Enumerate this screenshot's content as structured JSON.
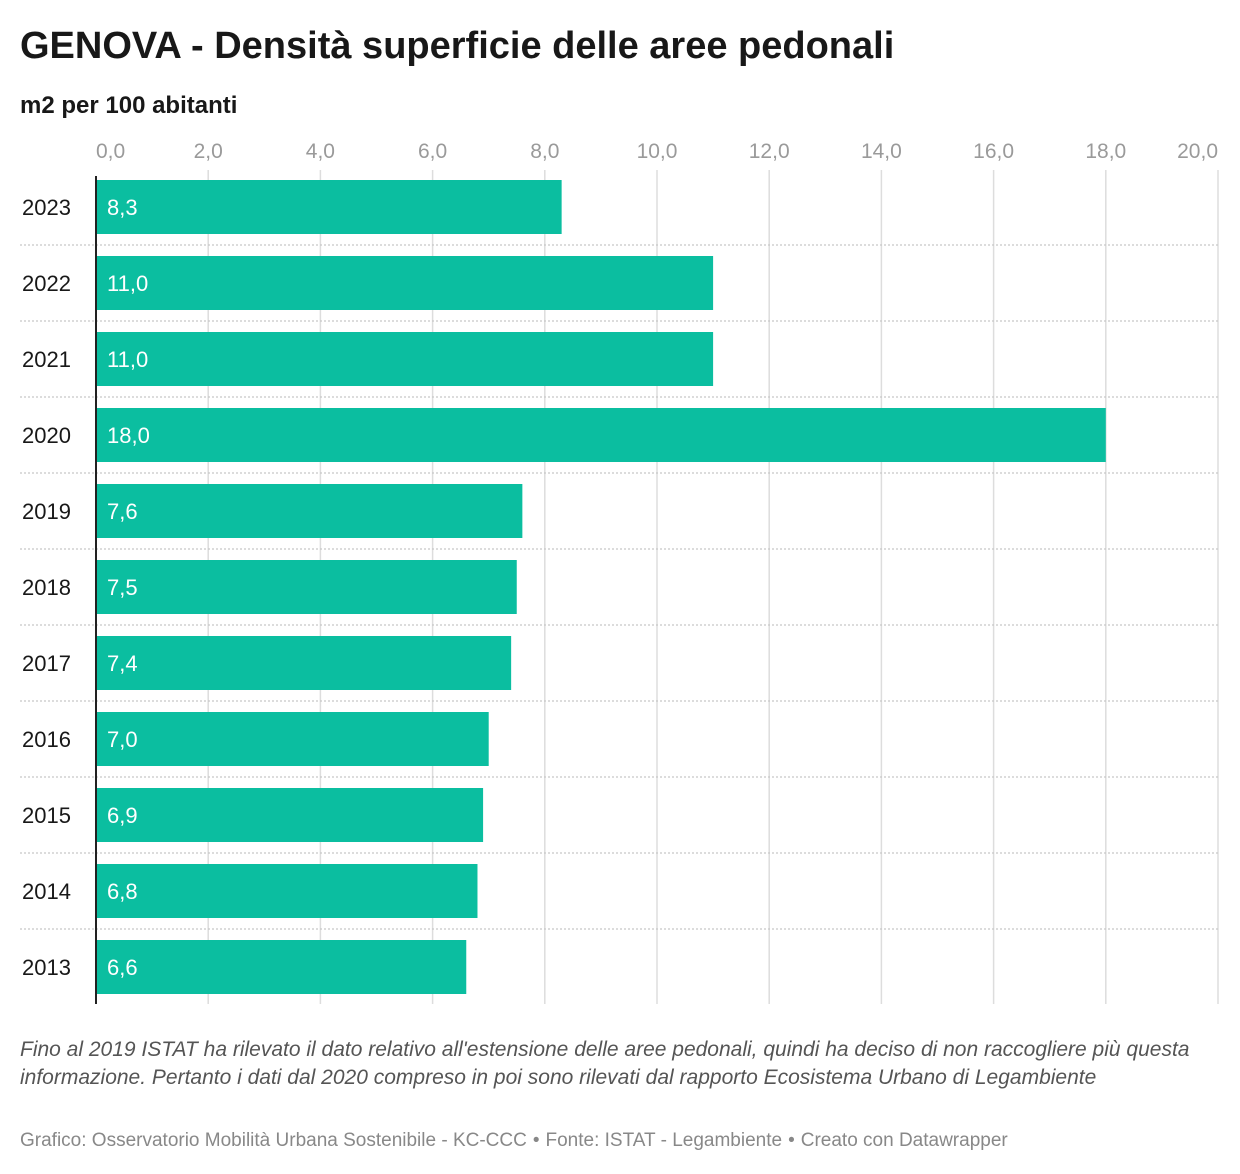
{
  "header": {
    "title": "GENOVA - Densità superficie delle aree pedonali",
    "subtitle": "m2 per 100 abitanti"
  },
  "footer": {
    "note": "Fino al 2019 ISTAT ha rilevato il dato relativo all'estensione delle aree pedonali, quindi ha deciso di non raccogliere più questa informazione. Pertanto i dati dal 2020 compreso in poi sono rilevati dal rapporto Ecosistema Urbano di Legambiente",
    "credit_chart": "Grafico: Osservatorio Mobilità Urbana Sostenibile - KC-CCC",
    "credit_source": "Fonte: ISTAT - Legambiente",
    "credit_tool": "Creato con Datawrapper",
    "separator": "•"
  },
  "chart_data": {
    "type": "bar",
    "orientation": "horizontal",
    "title": "GENOVA - Densità superficie delle aree pedonali",
    "subtitle": "m2 per 100 abitanti",
    "categories": [
      "2023",
      "2022",
      "2021",
      "2020",
      "2019",
      "2018",
      "2017",
      "2016",
      "2015",
      "2014",
      "2013"
    ],
    "values": [
      8.3,
      11.0,
      11.0,
      18.0,
      7.6,
      7.5,
      7.4,
      7.0,
      6.9,
      6.8,
      6.6
    ],
    "value_labels": [
      "8,3",
      "11,0",
      "11,0",
      "18,0",
      "7,6",
      "7,5",
      "7,4",
      "7,0",
      "6,9",
      "6,8",
      "6,6"
    ],
    "xlim": [
      0,
      20
    ],
    "ticks": [
      0,
      2,
      4,
      6,
      8,
      10,
      12,
      14,
      16,
      18,
      20
    ],
    "tick_labels": [
      "0,0",
      "2,0",
      "4,0",
      "6,0",
      "8,0",
      "10,0",
      "12,0",
      "14,0",
      "16,0",
      "18,0",
      "20,0"
    ],
    "axis_position": "top",
    "grid": true,
    "colors": {
      "bar": "#0bbea0",
      "grid": "#dddddd",
      "tick_text": "#9a9a9a",
      "axis": "#222222",
      "bar_label": "#ffffff"
    }
  }
}
